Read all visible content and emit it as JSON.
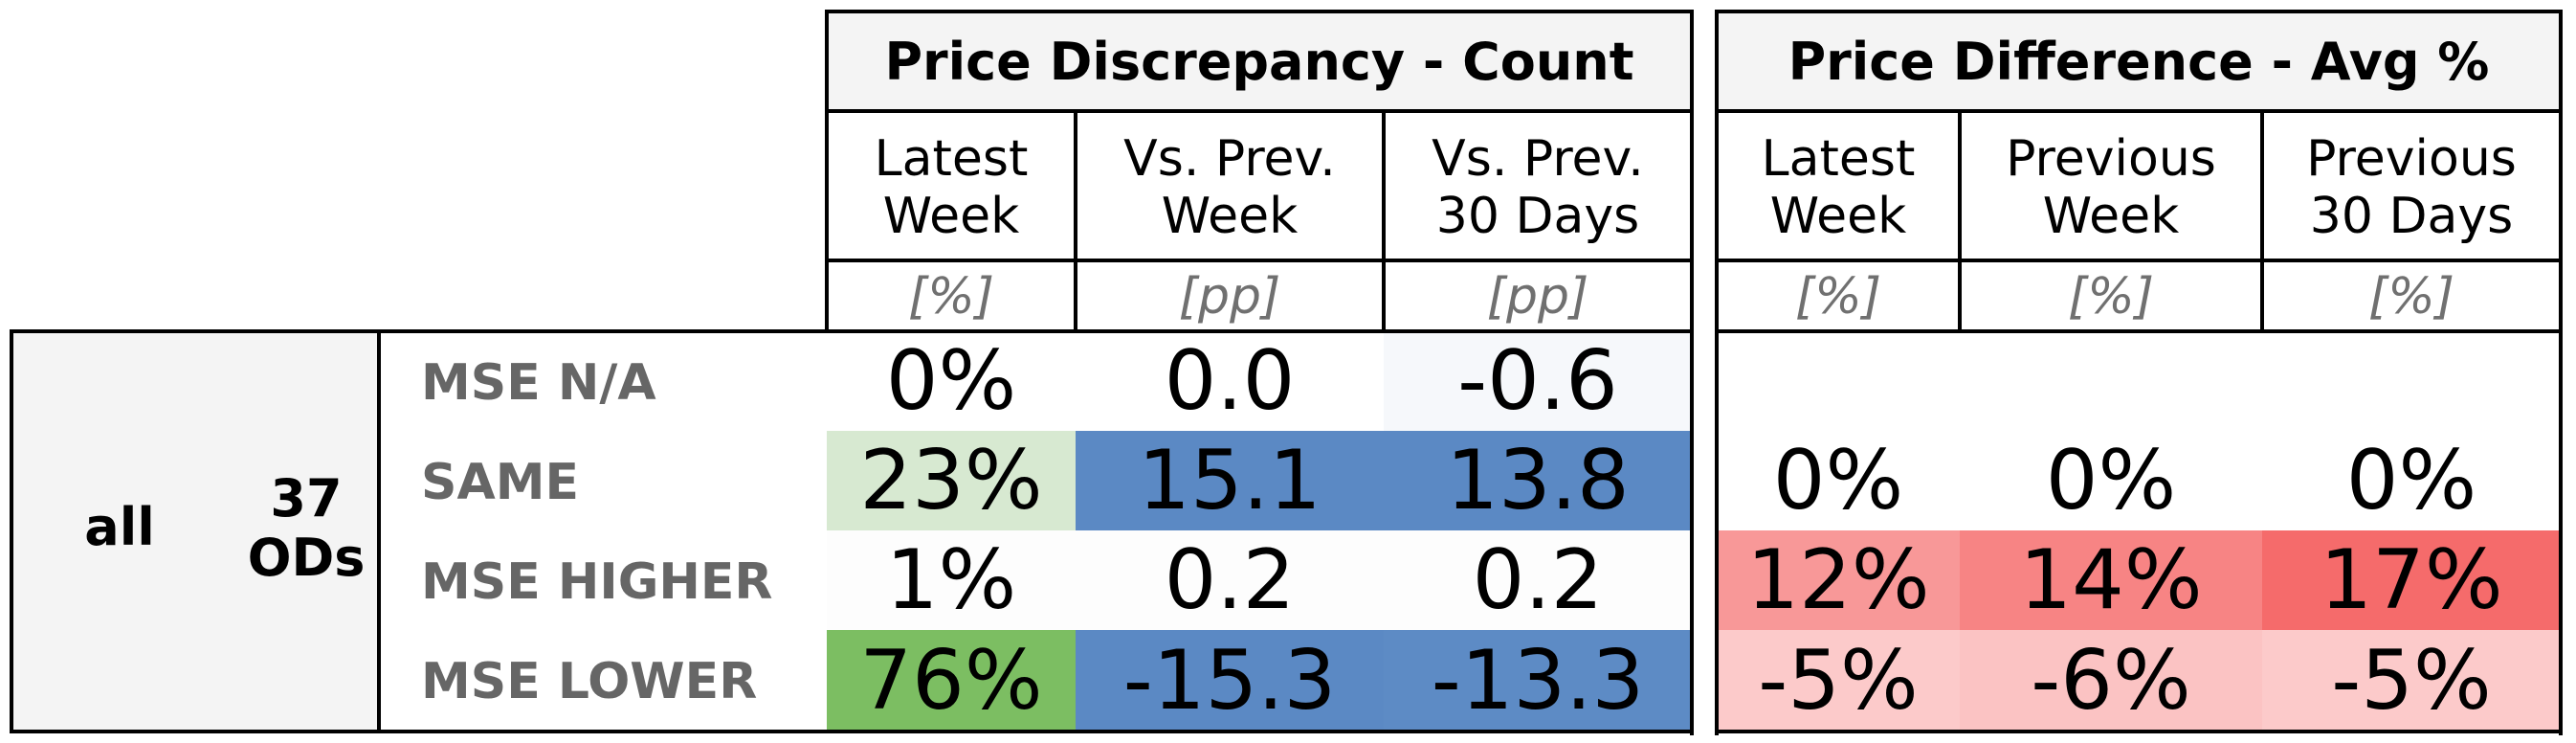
{
  "group": {
    "scope": "all",
    "count_line1": "37",
    "count_line2": "ODs"
  },
  "discrepancy": {
    "title": "Price Discrepancy - Count",
    "columns": [
      {
        "label": "Latest\nWeek",
        "unit": "[%]"
      },
      {
        "label": "Vs. Prev.\nWeek",
        "unit": "[pp]"
      },
      {
        "label": "Vs. Prev.\n30 Days",
        "unit": "[pp]"
      }
    ]
  },
  "difference": {
    "title": "Price Difference - Avg %",
    "columns": [
      {
        "label": "Latest\nWeek",
        "unit": "[%]"
      },
      {
        "label": "Previous\nWeek",
        "unit": "[%]"
      },
      {
        "label": "Previous\n30 Days",
        "unit": "[%]"
      }
    ]
  },
  "rows": [
    {
      "label": "MSE N/A",
      "disc": [
        {
          "v": "0%",
          "c": "#ffffff"
        },
        {
          "v": "0.0",
          "c": "#ffffff"
        },
        {
          "v": "-0.6",
          "c": "#f6f8fb"
        }
      ],
      "diff": [
        {
          "v": "",
          "c": "#ffffff"
        },
        {
          "v": "",
          "c": "#ffffff"
        },
        {
          "v": "",
          "c": "#ffffff"
        }
      ]
    },
    {
      "label": "SAME",
      "disc": [
        {
          "v": "23%",
          "c": "#d7e9d1"
        },
        {
          "v": "15.1",
          "c": "#5b89c4"
        },
        {
          "v": "13.8",
          "c": "#5b89c4"
        }
      ],
      "diff": [
        {
          "v": "0%",
          "c": "#ffffff"
        },
        {
          "v": "0%",
          "c": "#ffffff"
        },
        {
          "v": "0%",
          "c": "#ffffff"
        }
      ]
    },
    {
      "label": "MSE HIGHER",
      "disc": [
        {
          "v": "1%",
          "c": "#fdfdfd"
        },
        {
          "v": "0.2",
          "c": "#fdfdfd"
        },
        {
          "v": "0.2",
          "c": "#fdfdfd"
        }
      ],
      "diff": [
        {
          "v": "12%",
          "c": "#f89898"
        },
        {
          "v": "14%",
          "c": "#f78484"
        },
        {
          "v": "17%",
          "c": "#f56b6b"
        }
      ]
    },
    {
      "label": "MSE LOWER",
      "disc": [
        {
          "v": "76%",
          "c": "#7cbe62"
        },
        {
          "v": "-15.3",
          "c": "#5b89c4"
        },
        {
          "v": "-13.3",
          "c": "#5d8bc5"
        }
      ],
      "diff": [
        {
          "v": "-5%",
          "c": "#fccaca"
        },
        {
          "v": "-6%",
          "c": "#fbc3c3"
        },
        {
          "v": "-5%",
          "c": "#fccaca"
        }
      ]
    }
  ]
}
